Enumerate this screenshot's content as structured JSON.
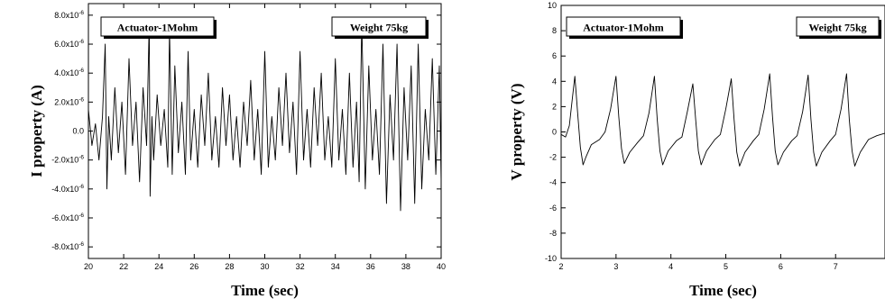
{
  "chart_data": [
    {
      "type": "line",
      "xlabel": "Time (sec)",
      "ylabel": "I property (A)",
      "xlim": [
        20,
        40
      ],
      "ylim": [
        -8.8e-06,
        8.8e-06
      ],
      "x_ticks": [
        20,
        22,
        24,
        26,
        28,
        30,
        32,
        34,
        36,
        38,
        40
      ],
      "x_tick_labels": [
        "20",
        "22",
        "24",
        "26",
        "28",
        "30",
        "32",
        "34",
        "36",
        "38",
        "40"
      ],
      "y_ticks": [
        8e-06,
        6e-06,
        4e-06,
        2e-06,
        0,
        -2e-06,
        -4e-06,
        -6e-06,
        -8e-06
      ],
      "y_tick_labels": [
        {
          "mantissa": "8.0x10",
          "exp": "-6"
        },
        {
          "mantissa": "6.0x10",
          "exp": "-6"
        },
        {
          "mantissa": "4.0x10",
          "exp": "-6"
        },
        {
          "mantissa": "2.0x10",
          "exp": "-6"
        },
        {
          "mantissa": "0.0",
          "exp": ""
        },
        {
          "mantissa": "-2.0x10",
          "exp": "-6"
        },
        {
          "mantissa": "-4.0x10",
          "exp": "-6"
        },
        {
          "mantissa": "-6.0x10",
          "exp": "-6"
        },
        {
          "mantissa": "-8.0x10",
          "exp": "-6"
        }
      ],
      "labels": [
        "Actuator-1Mohm",
        "Weight 75kg"
      ],
      "series": [
        {
          "x": [
            20.0,
            20.2,
            20.4,
            20.6,
            20.8,
            20.95,
            21.05,
            21.15,
            21.3,
            21.5,
            21.7,
            21.9,
            22.1,
            22.3,
            22.5,
            22.7,
            22.9,
            23.1,
            23.3,
            23.45,
            23.5,
            23.6,
            23.7,
            23.9,
            24.1,
            24.3,
            24.5,
            24.6,
            24.75,
            24.9,
            25.1,
            25.3,
            25.5,
            25.65,
            25.8,
            26.0,
            26.2,
            26.4,
            26.6,
            26.8,
            27.0,
            27.2,
            27.4,
            27.6,
            27.8,
            28.0,
            28.2,
            28.4,
            28.6,
            28.8,
            29.0,
            29.2,
            29.4,
            29.6,
            29.8,
            30.0,
            30.2,
            30.4,
            30.6,
            30.8,
            31.0,
            31.2,
            31.4,
            31.6,
            31.8,
            32.0,
            32.2,
            32.4,
            32.6,
            32.8,
            33.0,
            33.2,
            33.4,
            33.6,
            33.8,
            34.0,
            34.2,
            34.4,
            34.6,
            34.8,
            35.0,
            35.2,
            35.35,
            35.5,
            35.7,
            35.9,
            36.1,
            36.3,
            36.5,
            36.7,
            36.9,
            37.1,
            37.3,
            37.5,
            37.7,
            37.9,
            38.1,
            38.3,
            38.5,
            38.7,
            38.9,
            39.1,
            39.3,
            39.5,
            39.7,
            39.9,
            40.0
          ],
          "y": [
            1.5e-06,
            -1e-06,
            5e-07,
            -2e-06,
            1e-06,
            6e-06,
            -4e-06,
            1e-06,
            -2e-06,
            3e-06,
            -1.5e-06,
            2e-06,
            -3e-06,
            5e-06,
            -1e-06,
            2e-06,
            -3.5e-06,
            3e-06,
            -1e-06,
            7.5e-06,
            -4.5e-06,
            1e-06,
            -2e-06,
            2.5e-06,
            -1e-06,
            1.5e-06,
            -2.5e-06,
            7e-06,
            -3e-06,
            4.5e-06,
            -1.5e-06,
            2e-06,
            -3e-06,
            5.5e-06,
            -2e-06,
            1.5e-06,
            -2.5e-06,
            2.5e-06,
            -1e-06,
            4e-06,
            -2e-06,
            1e-06,
            -2.5e-06,
            3e-06,
            -1e-06,
            2.5e-06,
            -2e-06,
            1e-06,
            -2.5e-06,
            2e-06,
            -1e-06,
            3.5e-06,
            -2e-06,
            1.5e-06,
            -3e-06,
            5.5e-06,
            -2.5e-06,
            1e-06,
            -2e-06,
            3e-06,
            -1e-06,
            4e-06,
            -1.5e-06,
            2e-06,
            -3e-06,
            5.5e-06,
            -2e-06,
            1.5e-06,
            -2.5e-06,
            3e-06,
            -1e-06,
            4e-06,
            -2e-06,
            1e-06,
            -2.5e-06,
            5e-06,
            -2e-06,
            1.5e-06,
            -3e-06,
            4e-06,
            -2.5e-06,
            2e-06,
            -3.5e-06,
            7.5e-06,
            -4e-06,
            4.5e-06,
            -2e-06,
            1.5e-06,
            -3e-06,
            6e-06,
            -5e-06,
            2.5e-06,
            -2e-06,
            6e-06,
            -5.5e-06,
            3e-06,
            -2e-06,
            4.5e-06,
            -5e-06,
            6e-06,
            -4e-06,
            1.5e-06,
            -2e-06,
            5e-06,
            -3e-06,
            4.5e-06,
            -3.5e-06
          ]
        }
      ]
    },
    {
      "type": "line",
      "xlabel": "Time (sec)",
      "ylabel": "V property (V)",
      "xlim": [
        2,
        7.9
      ],
      "ylim": [
        -10,
        10
      ],
      "x_ticks": [
        2,
        3,
        4,
        5,
        6,
        7
      ],
      "x_tick_labels": [
        "2",
        "3",
        "4",
        "5",
        "6",
        "7"
      ],
      "y_ticks": [
        10,
        8,
        6,
        4,
        2,
        0,
        -2,
        -4,
        -6,
        -8,
        -10
      ],
      "y_tick_labels": [
        {
          "mantissa": "10",
          "exp": ""
        },
        {
          "mantissa": "8",
          "exp": ""
        },
        {
          "mantissa": "6",
          "exp": ""
        },
        {
          "mantissa": "4",
          "exp": ""
        },
        {
          "mantissa": "2",
          "exp": ""
        },
        {
          "mantissa": "0",
          "exp": ""
        },
        {
          "mantissa": "-2",
          "exp": ""
        },
        {
          "mantissa": "-4",
          "exp": ""
        },
        {
          "mantissa": "-6",
          "exp": ""
        },
        {
          "mantissa": "-8",
          "exp": ""
        },
        {
          "mantissa": "-10",
          "exp": ""
        }
      ],
      "labels": [
        "Actuator-1Mohm",
        "Weight 75kg"
      ],
      "series": [
        {
          "x": [
            2.0,
            2.08,
            2.15,
            2.2,
            2.25,
            2.3,
            2.35,
            2.4,
            2.45,
            2.55,
            2.7,
            2.8,
            2.9,
            3.0,
            3.05,
            3.1,
            3.15,
            3.25,
            3.4,
            3.5,
            3.6,
            3.7,
            3.75,
            3.8,
            3.85,
            3.95,
            4.1,
            4.2,
            4.3,
            4.4,
            4.45,
            4.5,
            4.55,
            4.65,
            4.8,
            4.9,
            5.0,
            5.1,
            5.15,
            5.2,
            5.25,
            5.35,
            5.5,
            5.6,
            5.7,
            5.8,
            5.85,
            5.9,
            5.95,
            6.05,
            6.2,
            6.3,
            6.4,
            6.5,
            6.55,
            6.6,
            6.65,
            6.75,
            6.9,
            7.0,
            7.1,
            7.2,
            7.25,
            7.3,
            7.35,
            7.45,
            7.6,
            7.75,
            7.9
          ],
          "y": [
            -0.2,
            -0.4,
            0.5,
            2.5,
            4.4,
            1.5,
            -1.2,
            -2.6,
            -2.0,
            -1.0,
            -0.6,
            0.0,
            1.8,
            4.4,
            1.2,
            -1.3,
            -2.5,
            -1.6,
            -0.8,
            -0.3,
            1.5,
            4.4,
            1.0,
            -1.5,
            -2.6,
            -1.5,
            -0.7,
            -0.4,
            1.6,
            3.8,
            1.0,
            -1.5,
            -2.6,
            -1.5,
            -0.6,
            -0.2,
            1.8,
            4.2,
            1.0,
            -1.6,
            -2.7,
            -1.6,
            -0.7,
            -0.2,
            1.8,
            4.6,
            1.2,
            -1.5,
            -2.6,
            -1.6,
            -0.7,
            -0.3,
            1.6,
            4.5,
            1.0,
            -1.6,
            -2.7,
            -1.6,
            -0.7,
            -0.2,
            1.8,
            4.6,
            1.0,
            -1.5,
            -2.7,
            -1.6,
            -0.6,
            -0.3,
            -0.1
          ]
        }
      ]
    }
  ]
}
